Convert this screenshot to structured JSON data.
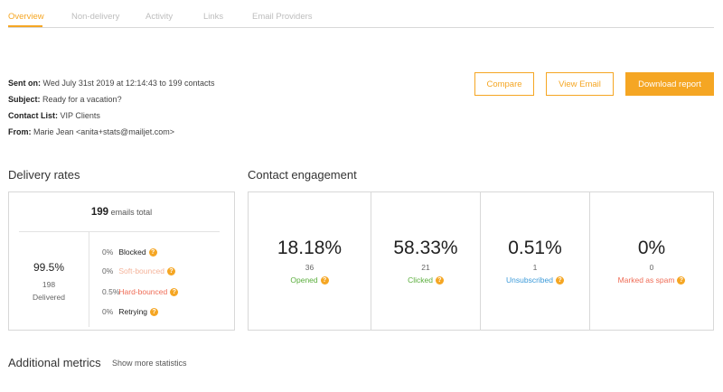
{
  "tabs": [
    {
      "label": "Overview",
      "active": true
    },
    {
      "label": "Non-delivery"
    },
    {
      "label": "Activity"
    },
    {
      "label": "Links"
    },
    {
      "label": "Email Providers"
    }
  ],
  "campaign": {
    "sent_on_label": "Sent on:",
    "sent_on_value": " Wed July 31st 2019 at 12:14:43 to 199 contacts",
    "subject_label": "Subject:",
    "subject_value": " Ready for a vacation?",
    "contact_list_label": "Contact List:",
    "contact_list_value": " VIP Clients",
    "from_label": "From:",
    "from_value": " Marie Jean <anita+stats@mailjet.com>"
  },
  "actions": {
    "compare": "Compare",
    "view_email": "View Email",
    "download_report": "Download report"
  },
  "delivery": {
    "title": "Delivery rates",
    "total_count": "199",
    "total_label": "emails total",
    "delivered_pct": "99.5%",
    "delivered_count": "198",
    "delivered_label": "Delivered",
    "rates": [
      {
        "pct": "0%",
        "label": "Blocked",
        "color": "#222222"
      },
      {
        "pct": "0%",
        "label": "Soft-bounced",
        "color": "#f4b39a"
      },
      {
        "pct": "0.5%",
        "label": "Hard-bounced",
        "color": "#ef6b55"
      },
      {
        "pct": "0%",
        "label": "Retrying",
        "color": "#222222"
      }
    ]
  },
  "engagement": {
    "title": "Contact engagement",
    "cards": [
      {
        "pct": "18.18%",
        "count": "36",
        "label": "Opened",
        "color": "#5aae3c"
      },
      {
        "pct": "58.33%",
        "count": "21",
        "label": "Clicked",
        "color": "#5aae3c"
      },
      {
        "pct": "0.51%",
        "count": "1",
        "label": "Unsubscribed",
        "color": "#3b9ad9"
      },
      {
        "pct": "0%",
        "count": "0",
        "label": "Marked as spam",
        "color": "#ef6b55"
      }
    ]
  },
  "additional": {
    "title": "Additional metrics",
    "link": "Show more statistics"
  },
  "colors": {
    "accent": "#f5a623",
    "help_icon": "#f5a623"
  },
  "icons": {
    "help": "question-circle-icon"
  }
}
